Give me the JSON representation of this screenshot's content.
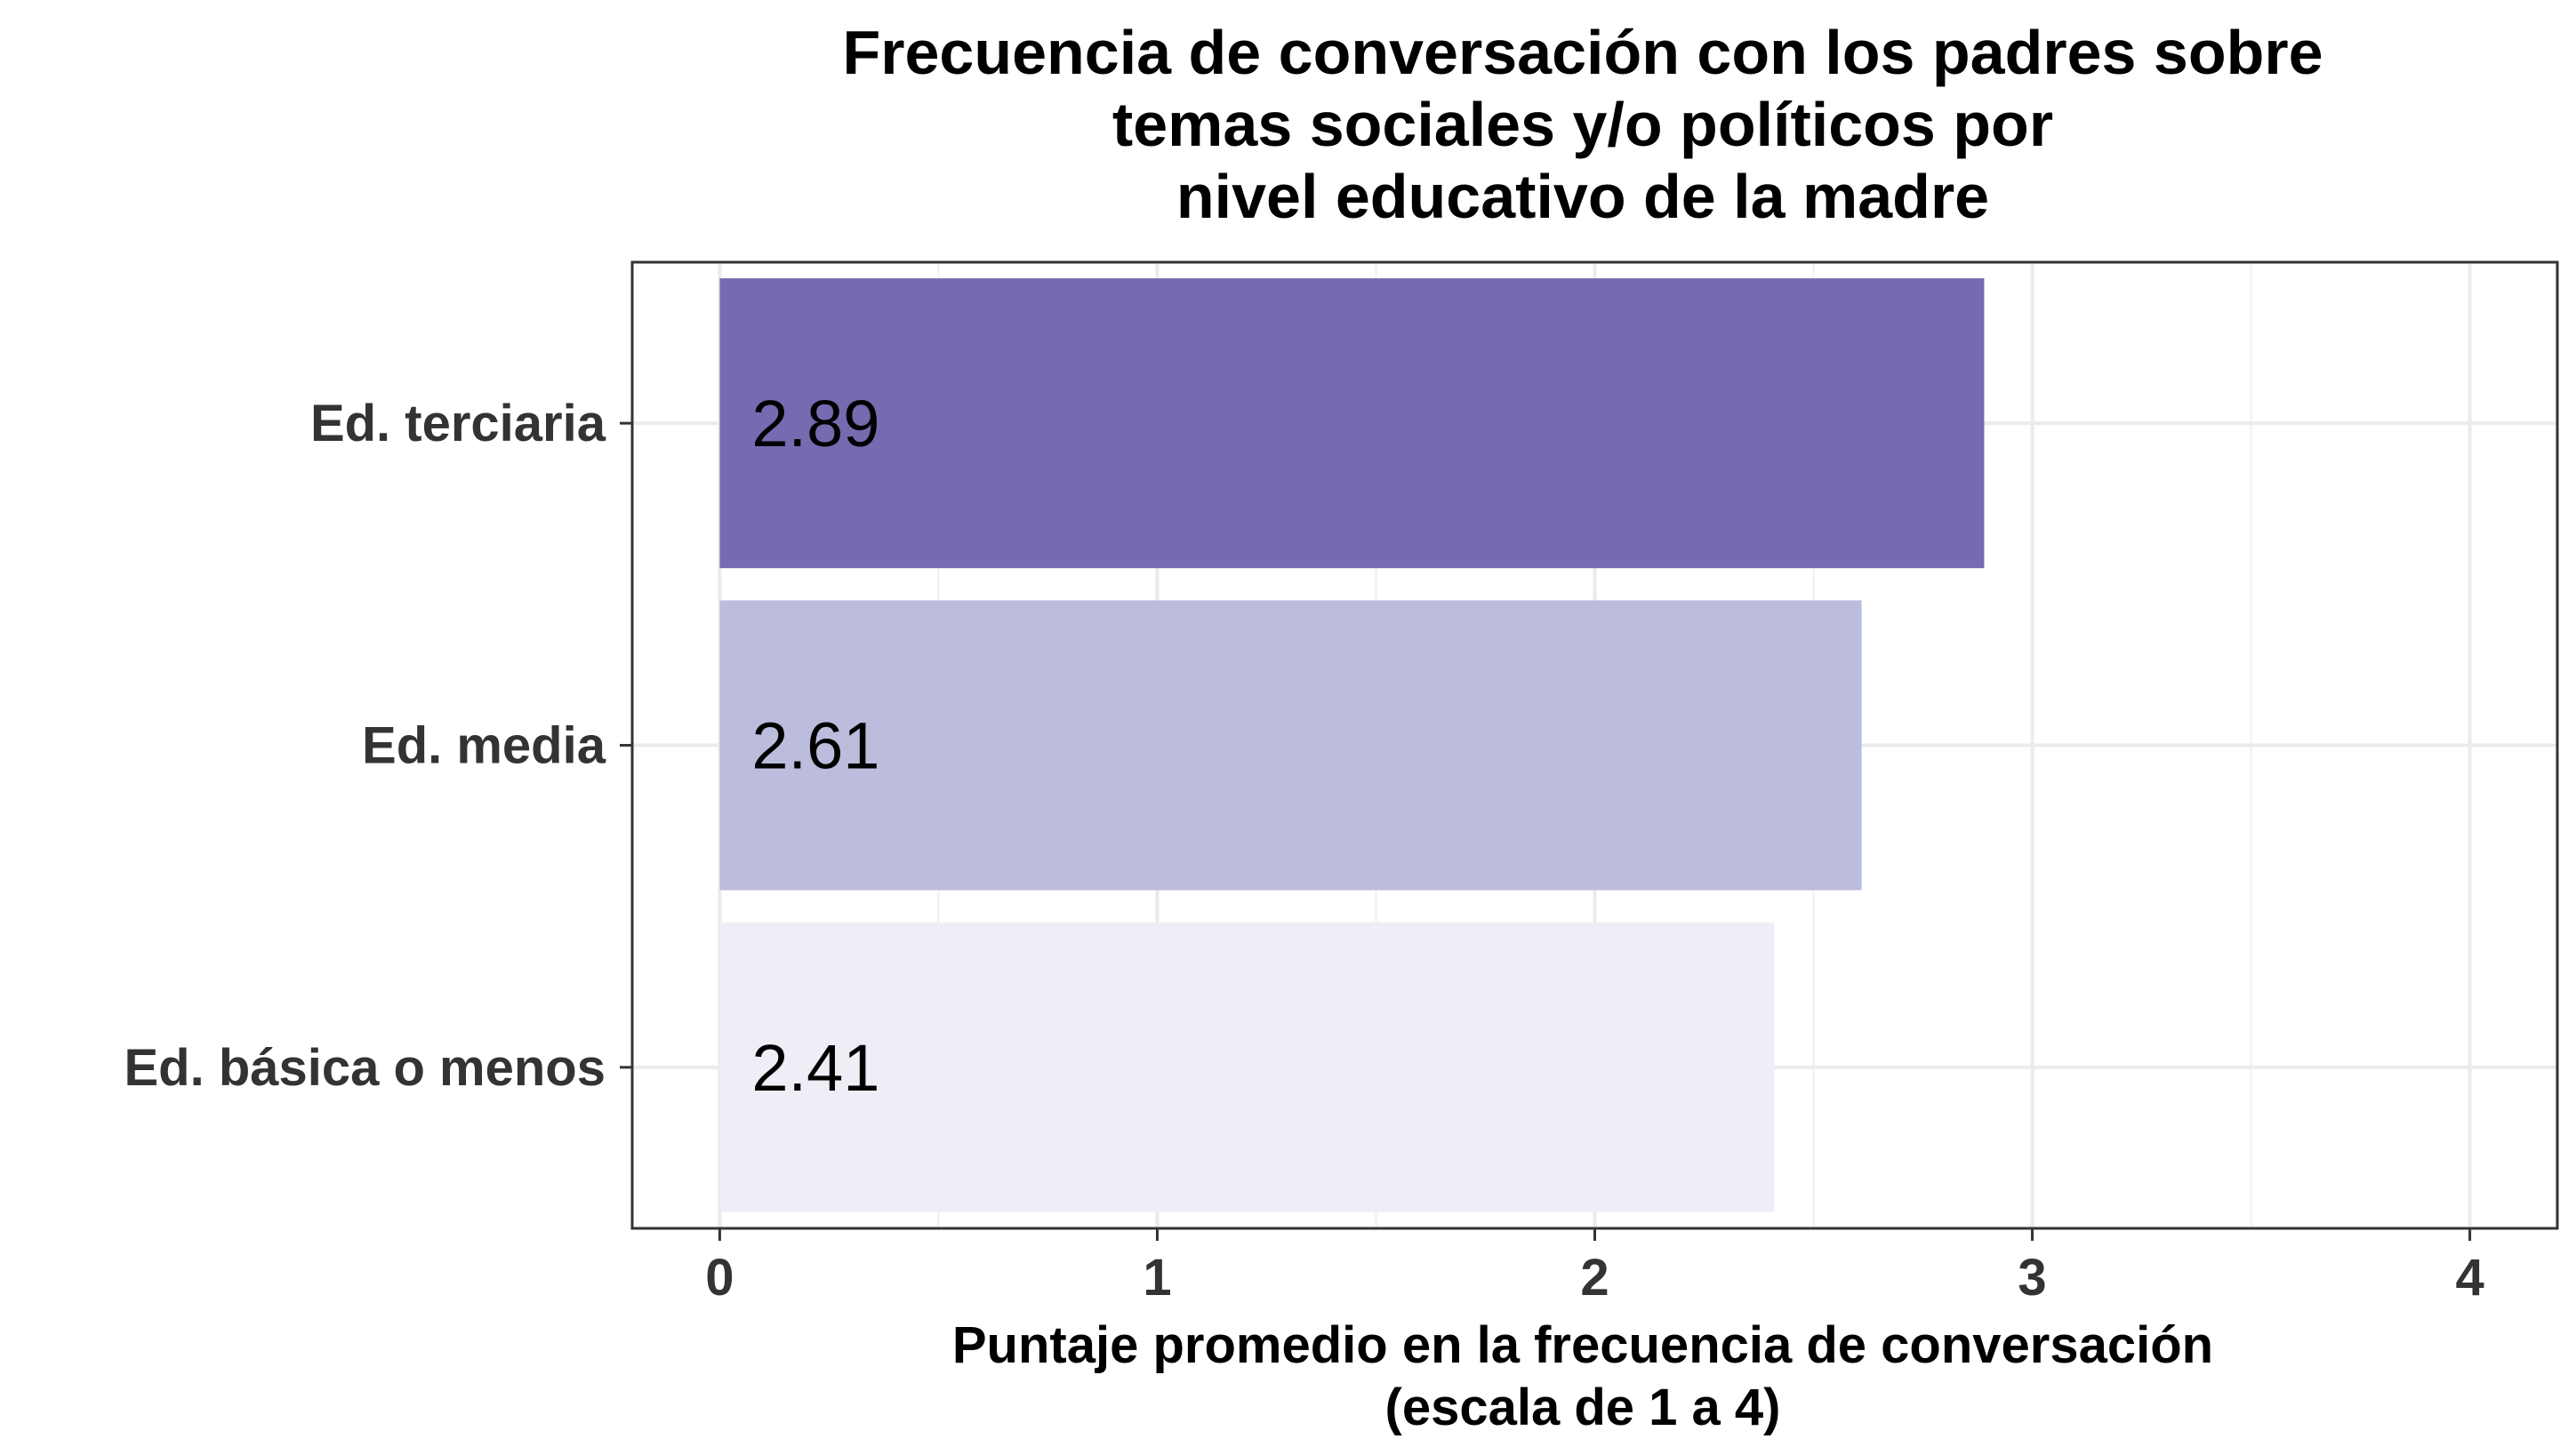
{
  "chart_data": {
    "type": "bar",
    "orientation": "horizontal",
    "title": [
      "Frecuencia de conversación con los padres sobre",
      "temas sociales y/o políticos por",
      "nivel educativo de la madre"
    ],
    "xlabel": [
      "Puntaje promedio en la frecuencia de conversación",
      "(escala de 1 a 4)"
    ],
    "ylabel": "",
    "categories": [
      "Ed. terciaria",
      "Ed. media",
      "Ed. básica o menos"
    ],
    "values": [
      2.89,
      2.61,
      2.41
    ],
    "data_labels": [
      "2.89",
      "2.61",
      "2.41"
    ],
    "bar_colors": [
      "#756bb1",
      "#bcbddc",
      "#efedf5"
    ],
    "xlim": [
      -0.2,
      4.2
    ],
    "xticks": [
      0,
      1,
      2,
      3,
      4
    ],
    "xtick_labels": [
      "0",
      "1",
      "2",
      "3",
      "4"
    ],
    "grid": true,
    "legend": "none"
  }
}
